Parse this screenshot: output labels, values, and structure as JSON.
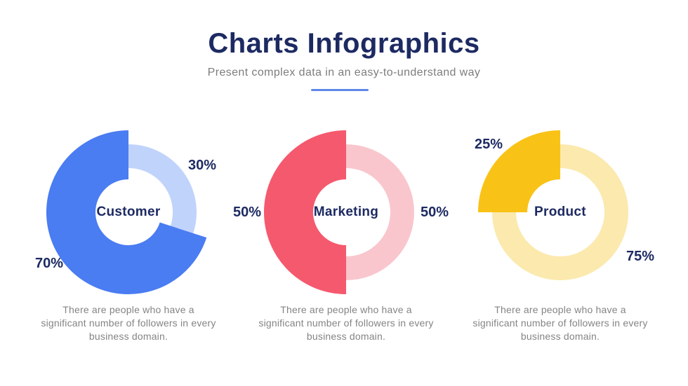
{
  "header": {
    "title": "Charts Infographics",
    "subtitle": "Present complex data in an easy-to-understand way"
  },
  "colors": {
    "title_navy": "#1d2a62",
    "subtitle_gray": "#7d7d7d",
    "caption_gray": "#848484",
    "underline_blue": "#5d88ea",
    "background": "#ffffff"
  },
  "chart_data": [
    {
      "type": "pie",
      "variant": "donut",
      "name": "Customer",
      "slices": [
        {
          "label": "70%",
          "value": 70,
          "color": "#4a7cf2",
          "emphasis": true
        },
        {
          "label": "30%",
          "value": 30,
          "color": "#c0d3fb",
          "emphasis": false
        }
      ],
      "caption": "There are people who have a significant number of followers in every business domain."
    },
    {
      "type": "pie",
      "variant": "donut",
      "name": "Marketing",
      "slices": [
        {
          "label": "50%",
          "value": 50,
          "color": "#f5596e",
          "emphasis": true
        },
        {
          "label": "50%",
          "value": 50,
          "color": "#f9c6cd",
          "emphasis": false
        }
      ],
      "caption": "There are people who have a significant number of followers in every business domain."
    },
    {
      "type": "pie",
      "variant": "donut",
      "name": "Product",
      "slices": [
        {
          "label": "25%",
          "value": 25,
          "color": "#f9c216",
          "emphasis": true
        },
        {
          "label": "75%",
          "value": 75,
          "color": "#fbe9ae",
          "emphasis": false
        }
      ],
      "caption": "There are people who have a significant number of followers in every business domain."
    }
  ]
}
